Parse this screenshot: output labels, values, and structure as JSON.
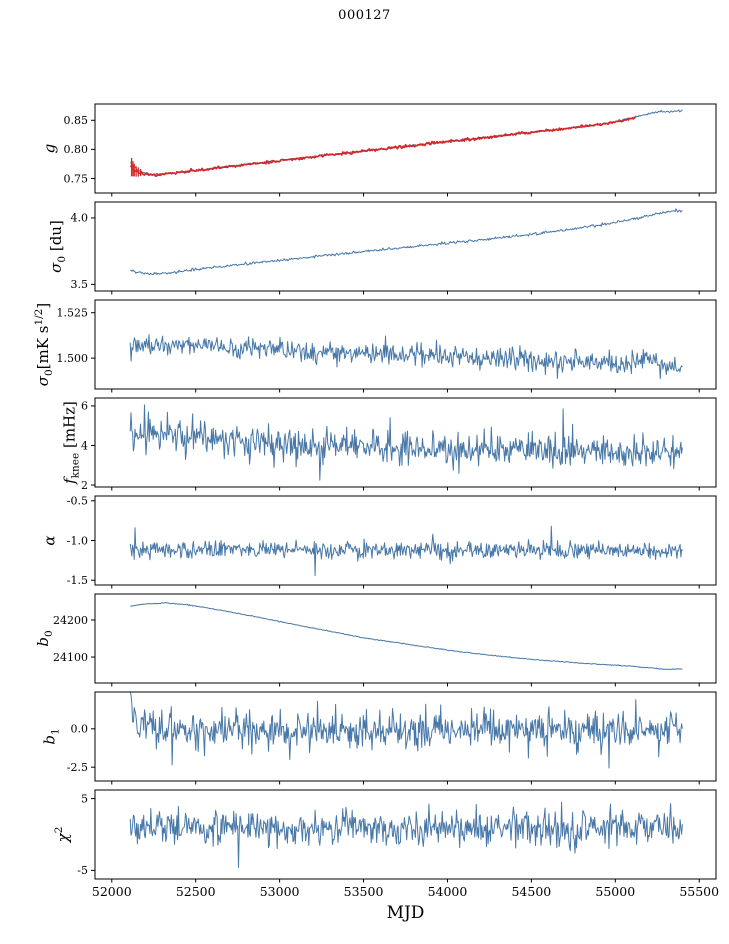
{
  "chart_data": {
    "type": "line",
    "title": "000127",
    "xlabel": "MJD",
    "xlim": [
      51900,
      55600
    ],
    "xticks": [
      52000,
      52500,
      53000,
      53500,
      54000,
      54500,
      55000,
      55500
    ],
    "xtick_labels": [
      "52000",
      "52500",
      "53000",
      "53500",
      "54000",
      "54500",
      "55000",
      "55500"
    ],
    "legend": "none",
    "grid": false,
    "colors": {
      "primary": "#4878a8",
      "secondary": "#d62728",
      "axis": "#000000",
      "background": "#ffffff"
    },
    "panels": [
      {
        "id": "g",
        "ylabel_text": "g",
        "ylabel_segments": [
          {
            "t": "g",
            "italic": true
          }
        ],
        "ylim": [
          0.725,
          0.878
        ],
        "yticks": [
          0.75,
          0.8,
          0.85
        ],
        "ytick_labels": [
          "0.75",
          "0.80",
          "0.85"
        ],
        "series": [
          {
            "name": "gain-data",
            "color": "#4878a8",
            "width": 1,
            "n": 600,
            "xrange": [
              52110,
              55400
            ],
            "noise": 0.0009,
            "trend": [
              [
                52110,
                0.7775
              ],
              [
                52150,
                0.765
              ],
              [
                52200,
                0.758
              ],
              [
                52260,
                0.7565
              ],
              [
                52350,
                0.7585
              ],
              [
                52500,
                0.7635
              ],
              [
                52700,
                0.7705
              ],
              [
                52950,
                0.779
              ],
              [
                53200,
                0.7875
              ],
              [
                53450,
                0.7955
              ],
              [
                53700,
                0.8035
              ],
              [
                53950,
                0.8115
              ],
              [
                54200,
                0.8195
              ],
              [
                54450,
                0.8275
              ],
              [
                54700,
                0.8355
              ],
              [
                54950,
                0.8445
              ],
              [
                55150,
                0.858
              ],
              [
                55250,
                0.8645
              ],
              [
                55400,
                0.866
              ]
            ]
          },
          {
            "name": "gain-model",
            "color": "#d62728",
            "width": 1.7,
            "n": 500,
            "xrange": [
              52110,
              55120
            ],
            "noise": 0.0012,
            "trend": [
              [
                52110,
                0.772
              ],
              [
                52140,
                0.7625
              ],
              [
                52200,
                0.758
              ],
              [
                52260,
                0.7565
              ],
              [
                52350,
                0.7585
              ],
              [
                52500,
                0.7635
              ],
              [
                52700,
                0.7705
              ],
              [
                52950,
                0.779
              ],
              [
                53200,
                0.7875
              ],
              [
                53450,
                0.7955
              ],
              [
                53700,
                0.8035
              ],
              [
                53950,
                0.8115
              ],
              [
                54200,
                0.8195
              ],
              [
                54450,
                0.8275
              ],
              [
                54700,
                0.8355
              ],
              [
                54950,
                0.8445
              ],
              [
                55120,
                0.8535
              ]
            ],
            "errorbars": [
              [
                52118,
                0.016
              ],
              [
                52126,
                0.013
              ],
              [
                52134,
                0.011
              ],
              [
                52145,
                0.009
              ],
              [
                52158,
                0.008
              ],
              [
                52172,
                0.006
              ]
            ]
          }
        ]
      },
      {
        "id": "sigma0-du",
        "ylabel_text": "sigma_0 [du]",
        "ylabel_segments": [
          {
            "t": "σ",
            "italic": true
          },
          {
            "t": "0",
            "sub": true
          },
          {
            "t": " [du]"
          }
        ],
        "ylim": [
          3.45,
          4.12
        ],
        "yticks": [
          3.5,
          4.0
        ],
        "ytick_labels": [
          "3.5",
          "4.0"
        ],
        "series": [
          {
            "name": "sigma0-du",
            "color": "#4878a8",
            "width": 1,
            "n": 600,
            "xrange": [
              52110,
              55400
            ],
            "noise": 0.005,
            "trend": [
              [
                52110,
                3.605
              ],
              [
                52150,
                3.59
              ],
              [
                52220,
                3.576
              ],
              [
                52300,
                3.582
              ],
              [
                52450,
                3.603
              ],
              [
                52650,
                3.633
              ],
              [
                52900,
                3.668
              ],
              [
                53150,
                3.702
              ],
              [
                53400,
                3.735
              ],
              [
                53650,
                3.766
              ],
              [
                53900,
                3.797
              ],
              [
                54150,
                3.828
              ],
              [
                54400,
                3.862
              ],
              [
                54650,
                3.9
              ],
              [
                54900,
                3.945
              ],
              [
                55100,
                3.99
              ],
              [
                55250,
                4.03
              ],
              [
                55350,
                4.055
              ],
              [
                55400,
                4.05
              ]
            ]
          }
        ]
      },
      {
        "id": "sigma0-mks",
        "ylabel_text": "sigma_0 [mK s^1/2]",
        "ylabel_segments": [
          {
            "t": "σ",
            "italic": true
          },
          {
            "t": "0",
            "sub": true
          },
          {
            "t": "[mK s"
          },
          {
            "t": "1/2",
            "sup": true
          },
          {
            "t": "]"
          }
        ],
        "ylim": [
          1.483,
          1.532
        ],
        "yticks": [
          1.5,
          1.525
        ],
        "ytick_labels": [
          "1.500",
          "1.525"
        ],
        "series": [
          {
            "name": "sigma0-mks",
            "color": "#4878a8",
            "width": 1,
            "n": 650,
            "xrange": [
              52110,
              55400
            ],
            "noise": 0.003,
            "trend": [
              [
                52110,
                1.506
              ],
              [
                52300,
                1.508
              ],
              [
                52500,
                1.507
              ],
              [
                52800,
                1.505
              ],
              [
                53100,
                1.504
              ],
              [
                53500,
                1.503
              ],
              [
                53900,
                1.5015
              ],
              [
                54300,
                1.5
              ],
              [
                54700,
                1.4985
              ],
              [
                55000,
                1.498
              ],
              [
                55150,
                1.4995
              ],
              [
                55300,
                1.496
              ],
              [
                55400,
                1.4925
              ]
            ]
          }
        ]
      },
      {
        "id": "fknee",
        "ylabel_text": "f_knee [mHz]",
        "ylabel_segments": [
          {
            "t": "f",
            "italic": true
          },
          {
            "t": "knee",
            "sub": true
          },
          {
            "t": " [mHz]"
          }
        ],
        "ylim": [
          1.9,
          6.4
        ],
        "yticks": [
          2,
          4,
          6
        ],
        "ytick_labels": [
          "2",
          "4",
          "6"
        ],
        "series": [
          {
            "name": "fknee",
            "color": "#4878a8",
            "width": 1,
            "n": 700,
            "xrange": [
              52110,
              55400
            ],
            "noise": 0.42,
            "trend": [
              [
                52110,
                4.65
              ],
              [
                52300,
                4.5
              ],
              [
                52600,
                4.35
              ],
              [
                53000,
                4.15
              ],
              [
                53400,
                4.02
              ],
              [
                53800,
                3.9
              ],
              [
                54200,
                3.82
              ],
              [
                54600,
                3.78
              ],
              [
                55000,
                3.72
              ],
              [
                55400,
                3.62
              ]
            ],
            "spikes": [
              [
                52195,
                6.05
              ],
              [
                52480,
                5.6
              ],
              [
                53240,
                2.25
              ],
              [
                53660,
                5.4
              ],
              [
                54690,
                5.85
              ]
            ]
          }
        ]
      },
      {
        "id": "alpha",
        "ylabel_text": "alpha",
        "ylabel_segments": [
          {
            "t": "α",
            "italic": true
          }
        ],
        "ylim": [
          -1.56,
          -0.44
        ],
        "yticks": [
          -0.5,
          -1.0,
          -1.5
        ],
        "ytick_labels": [
          "-0.5",
          "-1.0",
          "-1.5"
        ],
        "series": [
          {
            "name": "alpha",
            "color": "#4878a8",
            "width": 1,
            "n": 700,
            "xrange": [
              52110,
              55400
            ],
            "noise": 0.055,
            "trend": [
              [
                52110,
                -1.11
              ],
              [
                53500,
                -1.12
              ],
              [
                55400,
                -1.13
              ]
            ],
            "spikes": [
              [
                52140,
                -0.84
              ],
              [
                53210,
                -1.44
              ],
              [
                54620,
                -0.82
              ]
            ]
          }
        ]
      },
      {
        "id": "b0",
        "ylabel_text": "b_0",
        "ylabel_segments": [
          {
            "t": "b",
            "italic": true
          },
          {
            "t": "0",
            "sub": true
          }
        ],
        "ylim": [
          24030,
          24270
        ],
        "yticks": [
          24100,
          24200
        ],
        "ytick_labels": [
          "24100",
          "24200"
        ],
        "series": [
          {
            "name": "b0",
            "color": "#4878a8",
            "width": 1,
            "n": 600,
            "xrange": [
              52110,
              55400
            ],
            "noise": 0.6,
            "trend": [
              [
                52110,
                24237
              ],
              [
                52200,
                24243
              ],
              [
                52320,
                24246
              ],
              [
                52450,
                24241
              ],
              [
                52600,
                24230
              ],
              [
                52750,
                24218
              ],
              [
                52900,
                24205
              ],
              [
                53050,
                24191
              ],
              [
                53200,
                24178
              ],
              [
                53350,
                24165
              ],
              [
                53500,
                24152
              ],
              [
                53650,
                24142
              ],
              [
                53800,
                24132
              ],
              [
                53950,
                24122
              ],
              [
                54100,
                24113
              ],
              [
                54250,
                24105
              ],
              [
                54400,
                24098
              ],
              [
                54550,
                24092
              ],
              [
                54700,
                24087
              ],
              [
                54850,
                24082
              ],
              [
                55000,
                24078
              ],
              [
                55100,
                24075
              ],
              [
                55200,
                24071
              ],
              [
                55300,
                24067
              ],
              [
                55400,
                24068
              ]
            ]
          }
        ]
      },
      {
        "id": "b1",
        "ylabel_text": "b_1",
        "ylabel_segments": [
          {
            "t": "b",
            "italic": true
          },
          {
            "t": "1",
            "sub": true
          }
        ],
        "ylim": [
          -3.4,
          2.4
        ],
        "yticks": [
          0.0,
          -2.5
        ],
        "ytick_labels": [
          "0.0",
          "-2.5"
        ],
        "series": [
          {
            "name": "b1",
            "color": "#4878a8",
            "width": 1,
            "n": 700,
            "xrange": [
              52110,
              55400
            ],
            "noise": 0.6,
            "trend": [
              [
                52110,
                1.9
              ],
              [
                52125,
                1.1
              ],
              [
                52145,
                0.55
              ],
              [
                52180,
                0.25
              ],
              [
                52260,
                0.05
              ],
              [
                52400,
                -0.05
              ],
              [
                53000,
                -0.07
              ],
              [
                54000,
                -0.05
              ],
              [
                55400,
                -0.02
              ]
            ],
            "spikes": [
              [
                52360,
                -2.35
              ],
              [
                53060,
                -2.0
              ],
              [
                54480,
                -1.9
              ],
              [
                54960,
                -2.55
              ],
              [
                55120,
                1.9
              ]
            ]
          }
        ]
      },
      {
        "id": "chi2",
        "ylabel_text": "chi^2",
        "ylabel_segments": [
          {
            "t": "χ",
            "italic": true
          },
          {
            "t": "2",
            "sup": true
          }
        ],
        "ylim": [
          -6.2,
          6.2
        ],
        "yticks": [
          5,
          -5
        ],
        "ytick_labels": [
          "5",
          "-5"
        ],
        "series": [
          {
            "name": "chi2",
            "color": "#4878a8",
            "width": 1,
            "n": 700,
            "xrange": [
              52110,
              55400
            ],
            "noise": 1.15,
            "trend": [
              [
                52110,
                0.9
              ],
              [
                53000,
                0.95
              ],
              [
                54000,
                1.0
              ],
              [
                55400,
                1.0
              ]
            ],
            "spikes": [
              [
                52755,
                -4.6
              ],
              [
                54170,
                4.2
              ],
              [
                55330,
                4.3
              ]
            ]
          }
        ]
      }
    ]
  }
}
